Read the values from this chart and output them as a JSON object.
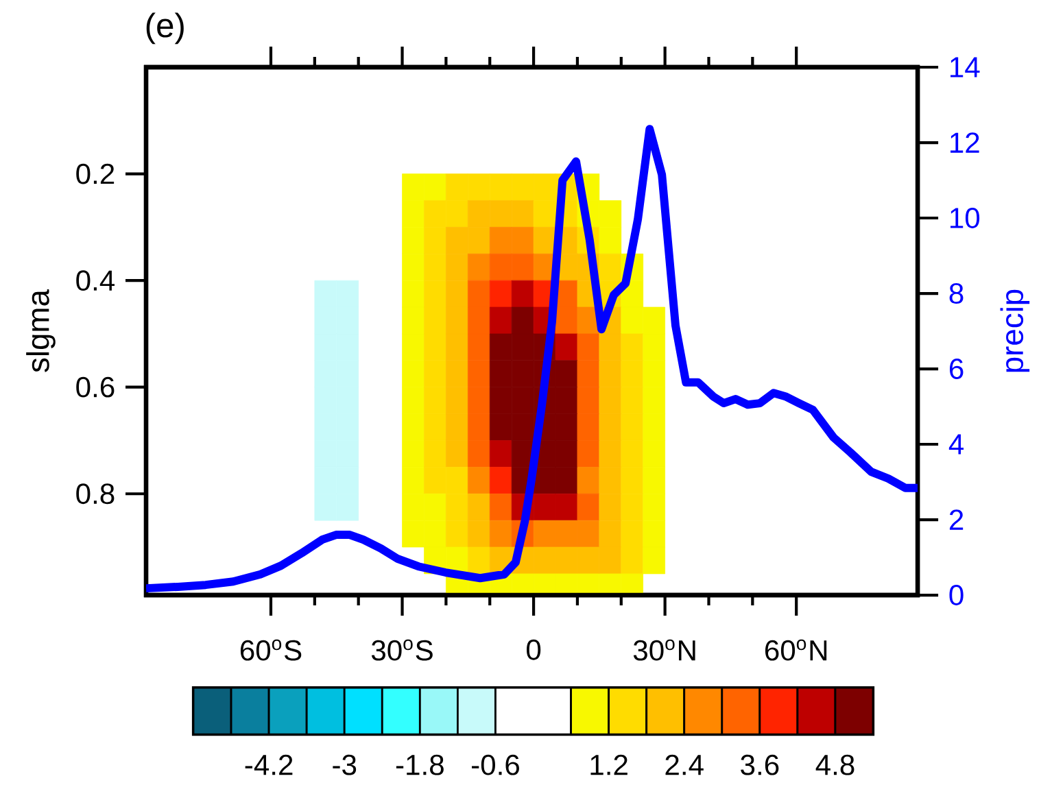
{
  "chart_data": {
    "type": "heatmap",
    "title": "(e)",
    "ylabel": "slgma",
    "y2label": "precip",
    "xlim": [
      -88.5,
      87.7
    ],
    "ylim": [
      0.99,
      0
    ],
    "y2lim": [
      0,
      14
    ],
    "xticks": [
      {
        "value": -60,
        "label": "60$^{o}$S"
      },
      {
        "value": -30,
        "label": "30$^{o}$S"
      },
      0,
      {
        "value": 30,
        "label": "30$^{o}$N"
      },
      {
        "value": 60,
        "label": "60$^{o}$N"
      }
    ],
    "yticks": [
      0.2,
      0.4,
      0.6,
      0.8
    ],
    "y2ticks": [
      0,
      2,
      4,
      6,
      8,
      10,
      12,
      14
    ],
    "clim": [
      -5.4,
      5.4
    ],
    "cticks": [
      {
        "value": -4.8,
        "label": null
      },
      -4.2,
      {
        "value": -3.6,
        "label": null
      },
      -3,
      {
        "value": -2.4,
        "label": null
      },
      -1.8,
      {
        "value": -1.2,
        "label": null
      },
      -0.6,
      {
        "value": 0.6,
        "label": null
      },
      1.2,
      {
        "value": 1.8,
        "label": null
      },
      2.4,
      {
        "value": 3.0,
        "label": null
      },
      3.6,
      {
        "value": 4.2,
        "label": null
      },
      4.8
    ],
    "colors": [
      "#0a5f7a",
      "#0a7f9e",
      "#0aa0bd",
      "#00bfe0",
      "#00e0ff",
      "#33ffff",
      "#99f8f8",
      "#c8fafa",
      "#ffffff",
      "#f8f800",
      "#ffdc00",
      "#ffbf00",
      "#ff8800",
      "#ff6400",
      "#ff2400",
      "#be0000",
      "#7d0000"
    ],
    "x": [
      -47.5,
      -42.5,
      -37.5,
      -32.5,
      -27.5,
      -22.5,
      -17.5,
      -12.5,
      -7.5,
      -2.5,
      2.5,
      7.5,
      12.5,
      17.5,
      22.5,
      27.5
    ],
    "y": [
      0.225,
      0.275,
      0.325,
      0.375,
      0.425,
      0.475,
      0.525,
      0.575,
      0.625,
      0.675,
      0.725,
      0.775,
      0.825,
      0.875,
      0.925,
      0.975
    ],
    "cells": [
      [
        null,
        null,
        null,
        null,
        0.9,
        0.9,
        1.5,
        1.5,
        1.5,
        1.5,
        1.5,
        1.5,
        0.9,
        null,
        null,
        null
      ],
      [
        null,
        null,
        null,
        null,
        0.9,
        1.5,
        1.5,
        2.1,
        2.1,
        2.1,
        1.5,
        1.5,
        0.9,
        0.9,
        null,
        null
      ],
      [
        null,
        null,
        null,
        null,
        0.9,
        1.5,
        2.1,
        2.1,
        2.7,
        2.7,
        2.1,
        2.1,
        1.5,
        0.9,
        null,
        null
      ],
      [
        null,
        null,
        null,
        null,
        0.9,
        1.5,
        2.1,
        2.7,
        3.3,
        3.3,
        2.7,
        2.1,
        2.1,
        1.5,
        0.9,
        null
      ],
      [
        -0.9,
        -0.9,
        null,
        null,
        0.9,
        1.5,
        2.1,
        3.3,
        3.9,
        4.5,
        3.9,
        3.3,
        2.1,
        1.5,
        0.9,
        null
      ],
      [
        -0.9,
        -0.9,
        null,
        null,
        0.9,
        1.5,
        2.1,
        3.3,
        4.5,
        5.1,
        4.5,
        3.3,
        2.7,
        2.1,
        0.9,
        0.9
      ],
      [
        -0.9,
        -0.9,
        null,
        null,
        0.9,
        1.5,
        2.1,
        3.3,
        5.1,
        5.1,
        5.1,
        4.5,
        3.3,
        2.1,
        1.5,
        0.9
      ],
      [
        -0.9,
        -0.9,
        null,
        null,
        0.9,
        1.5,
        2.1,
        3.3,
        5.1,
        5.1,
        5.1,
        5.1,
        3.3,
        2.1,
        1.5,
        0.9
      ],
      [
        -0.9,
        -0.9,
        null,
        null,
        0.9,
        1.5,
        2.1,
        3.3,
        5.1,
        5.1,
        5.1,
        5.1,
        3.3,
        2.1,
        1.5,
        0.9
      ],
      [
        -0.9,
        -0.9,
        null,
        null,
        0.9,
        1.5,
        2.1,
        3.3,
        5.1,
        5.1,
        5.1,
        5.1,
        3.3,
        2.1,
        1.5,
        0.9
      ],
      [
        -0.9,
        -0.9,
        null,
        null,
        0.9,
        1.5,
        2.1,
        3.3,
        4.5,
        5.1,
        5.1,
        5.1,
        3.3,
        2.1,
        1.5,
        0.9
      ],
      [
        -0.9,
        -0.9,
        null,
        null,
        0.9,
        1.5,
        1.5,
        2.7,
        3.9,
        5.1,
        5.1,
        5.1,
        2.7,
        2.1,
        1.5,
        0.9
      ],
      [
        -0.9,
        -0.9,
        null,
        null,
        0.9,
        0.9,
        1.5,
        2.1,
        3.3,
        4.5,
        4.5,
        4.5,
        3.3,
        2.1,
        1.5,
        0.9
      ],
      [
        null,
        null,
        null,
        null,
        0.9,
        0.9,
        1.5,
        2.1,
        2.7,
        3.3,
        2.7,
        2.7,
        2.7,
        2.1,
        1.5,
        0.9
      ],
      [
        null,
        null,
        null,
        null,
        null,
        0.9,
        0.9,
        1.5,
        2.1,
        2.1,
        2.1,
        2.1,
        2.1,
        2.1,
        1.5,
        0.9
      ],
      [
        null,
        null,
        null,
        null,
        null,
        null,
        0.9,
        0.9,
        0.9,
        0.9,
        0.9,
        0.9,
        0.9,
        0.9,
        0.9,
        null
      ]
    ],
    "series": [
      {
        "type": "line",
        "axis": "y2",
        "color": "#0000ff",
        "x": [
          -88.5,
          -81.2,
          -74.9,
          -68.6,
          -62.4,
          -57.7,
          -53.0,
          -48.3,
          -45.1,
          -42.0,
          -38.9,
          -34.9,
          -31.0,
          -26.3,
          -20.1,
          -12.2,
          -6.7,
          -4.1,
          -2.0,
          -0.5,
          1.9,
          4.2,
          6.6,
          9.7,
          12.8,
          15.5,
          18.3,
          21.0,
          23.8,
          26.5,
          29.3,
          32.4,
          34.8,
          37.6,
          41.0,
          43.4,
          46.1,
          48.9,
          51.7,
          54.8,
          57.5,
          60.6,
          63.8,
          68.5,
          72.4,
          77.1,
          81.0,
          84.9,
          87.7
        ],
        "values": [
          0.18,
          0.22,
          0.27,
          0.36,
          0.55,
          0.78,
          1.11,
          1.47,
          1.6,
          1.6,
          1.47,
          1.24,
          0.96,
          0.76,
          0.6,
          0.45,
          0.55,
          0.87,
          1.96,
          3.05,
          5.05,
          7.24,
          11.0,
          11.5,
          9.42,
          7.05,
          7.96,
          8.27,
          9.96,
          12.36,
          11.15,
          7.15,
          5.64,
          5.64,
          5.27,
          5.09,
          5.2,
          5.05,
          5.09,
          5.36,
          5.27,
          5.09,
          4.91,
          4.18,
          3.78,
          3.27,
          3.09,
          2.84,
          2.84
        ]
      }
    ]
  }
}
